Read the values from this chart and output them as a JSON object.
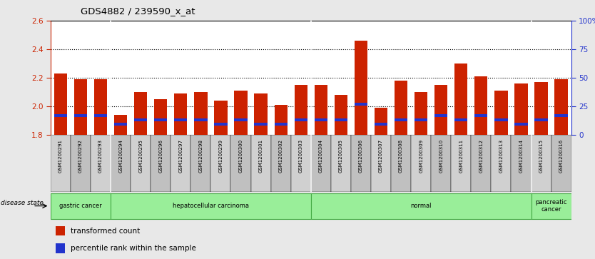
{
  "title": "GDS4882 / 239590_x_at",
  "samples": [
    "GSM1200291",
    "GSM1200292",
    "GSM1200293",
    "GSM1200294",
    "GSM1200295",
    "GSM1200296",
    "GSM1200297",
    "GSM1200298",
    "GSM1200299",
    "GSM1200300",
    "GSM1200301",
    "GSM1200302",
    "GSM1200303",
    "GSM1200304",
    "GSM1200305",
    "GSM1200306",
    "GSM1200307",
    "GSM1200308",
    "GSM1200309",
    "GSM1200310",
    "GSM1200311",
    "GSM1200312",
    "GSM1200313",
    "GSM1200314",
    "GSM1200315",
    "GSM1200316"
  ],
  "red_values": [
    2.23,
    2.19,
    2.19,
    1.94,
    2.1,
    2.05,
    2.09,
    2.1,
    2.04,
    2.11,
    2.09,
    2.01,
    2.15,
    2.15,
    2.08,
    2.46,
    1.99,
    2.18,
    2.1,
    2.15,
    2.3,
    2.21,
    2.11,
    2.16,
    2.17,
    2.19
  ],
  "blue_values": [
    1.935,
    1.935,
    1.935,
    1.875,
    1.905,
    1.905,
    1.905,
    1.905,
    1.875,
    1.905,
    1.875,
    1.875,
    1.905,
    1.905,
    1.905,
    2.015,
    1.875,
    1.905,
    1.905,
    1.935,
    1.905,
    1.935,
    1.905,
    1.875,
    1.905,
    1.935
  ],
  "y_min": 1.8,
  "y_max": 2.6,
  "y_ticks": [
    1.8,
    2.0,
    2.2,
    2.4,
    2.6
  ],
  "y2_ticks": [
    0,
    25,
    50,
    75,
    100
  ],
  "y2_labels": [
    "0",
    "25",
    "50",
    "75",
    "100%"
  ],
  "groups": [
    {
      "label": "gastric cancer",
      "start": 0,
      "end": 2
    },
    {
      "label": "hepatocellular carcinoma",
      "start": 3,
      "end": 12
    },
    {
      "label": "normal",
      "start": 13,
      "end": 23
    },
    {
      "label": "pancreatic\ncancer",
      "start": 24,
      "end": 25
    }
  ],
  "bar_color": "#cc2200",
  "blue_color": "#2233cc",
  "bg_color": "#e8e8e8",
  "xtick_bg": "#d0d0d0",
  "plot_bg": "#ffffff",
  "group_color": "#99ee99",
  "group_border": "#44aa44",
  "left_axis_color": "#cc2200",
  "right_axis_color": "#2233cc",
  "grid_color": "#000000",
  "blue_bar_height": 0.018,
  "bar_width": 0.65
}
